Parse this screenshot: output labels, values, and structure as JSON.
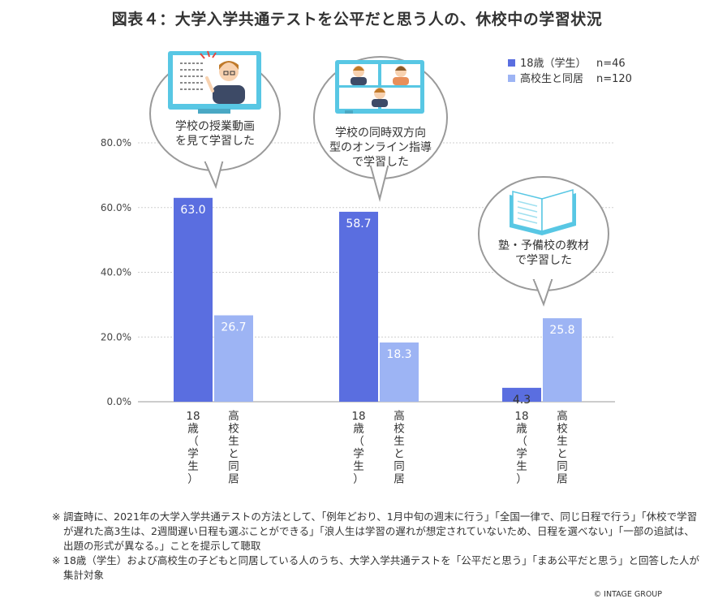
{
  "title": "図表４：大学入学共通テストを公平だと思う人の、休校中の学習状況",
  "chart_data": {
    "type": "bar",
    "ylim": [
      0,
      80
    ],
    "yticks": [
      "0.0%",
      "20.0%",
      "40.0%",
      "60.0%",
      "80.0%"
    ],
    "grid": true,
    "legend_position": "top-right",
    "groups": [
      {
        "label": "学校の授業動画を見て学習した",
        "callout": [
          "学校の授業動画",
          "を見て学習した"
        ],
        "icon": "teacher-monitor-icon"
      },
      {
        "label": "学校の同時双方向型のオンライン指導で学習した",
        "callout": [
          "学校の同時双方向",
          "型のオンライン指導",
          "で学習した"
        ],
        "icon": "online-class-icon"
      },
      {
        "label": "塾・予備校の教材で学習した",
        "callout": [
          "塾・予備校の教材",
          "で学習した"
        ],
        "icon": "book-icon"
      }
    ],
    "series": [
      {
        "name": "18歳（学生）",
        "n_label": "n=46",
        "color": "#5a6ee0",
        "axis_label": [
          "18",
          "歳",
          "（",
          "学",
          "生",
          "）"
        ],
        "values": [
          63.0,
          58.7,
          4.3
        ],
        "value_labels": [
          "63.0",
          "58.7",
          "4.3"
        ]
      },
      {
        "name": "高校生と同居",
        "n_label": "n=120",
        "color": "#9db4f4",
        "axis_label": [
          "高",
          "校",
          "生",
          "と",
          "同",
          "居"
        ],
        "values": [
          26.7,
          18.3,
          25.8
        ],
        "value_labels": [
          "26.7",
          "18.3",
          "25.8"
        ]
      }
    ]
  },
  "notes": [
    {
      "mark": "※",
      "text": "調査時に、2021年の大学入学共通テストの方法として、「例年どおり、1月中旬の週末に行う」「全国一律で、同じ日程で行う」「休校で学習が遅れた高3生は、2週間遅い日程も選ぶことができる」「浪人生は学習の遅れが想定されていないため、日程を選べない」「一部の追試は、出題の形式が異なる。」ことを提示して聴取"
    },
    {
      "mark": "※",
      "text": "18歳（学生）および高校生の子どもと同居している人のうち、大学入学共通テストを「公平だと思う」「まあ公平だと思う」と回答した人が集計対象"
    }
  ],
  "copyright": "© INTAGE GROUP"
}
